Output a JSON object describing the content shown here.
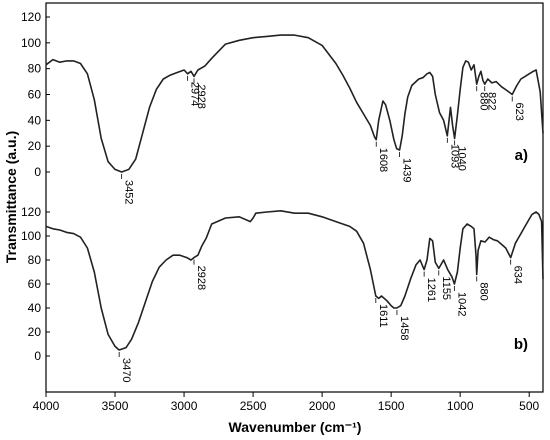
{
  "chart_data": {
    "type": "line",
    "title": "",
    "xlabel": "Wavenumber (cm⁻¹)",
    "ylabel": "Transmittance (a.u.)",
    "xlim": [
      4000,
      400
    ],
    "xticks": [
      4000,
      3500,
      3000,
      2500,
      2000,
      1500,
      1000,
      500
    ],
    "grid": false,
    "series": [
      {
        "panel_label": "a)",
        "yticks": [
          0,
          20,
          40,
          60,
          80,
          100,
          120
        ],
        "x": [
          4000,
          3950,
          3900,
          3850,
          3800,
          3750,
          3700,
          3650,
          3600,
          3550,
          3500,
          3452,
          3400,
          3350,
          3300,
          3250,
          3200,
          3150,
          3100,
          3050,
          3000,
          2974,
          2950,
          2928,
          2900,
          2850,
          2800,
          2700,
          2600,
          2500,
          2400,
          2300,
          2200,
          2100,
          2000,
          1900,
          1850,
          1800,
          1750,
          1700,
          1650,
          1620,
          1608,
          1590,
          1560,
          1540,
          1510,
          1480,
          1460,
          1439,
          1420,
          1400,
          1380,
          1350,
          1300,
          1270,
          1240,
          1220,
          1200,
          1180,
          1150,
          1120,
          1093,
          1070,
          1055,
          1040,
          1020,
          1000,
          980,
          960,
          940,
          920,
          900,
          880,
          865,
          850,
          835,
          822,
          800,
          770,
          740,
          700,
          660,
          623,
          590,
          560,
          530,
          500,
          470,
          450,
          420,
          400
        ],
        "y": [
          83,
          87,
          85,
          86,
          86,
          84,
          76,
          56,
          26,
          8,
          2,
          0,
          2,
          10,
          30,
          50,
          64,
          72,
          75,
          77,
          79,
          76,
          78,
          74,
          79,
          82,
          88,
          99,
          102,
          104,
          105,
          106,
          106,
          104,
          98,
          84,
          75,
          65,
          54,
          45,
          36,
          27,
          25,
          40,
          55,
          52,
          40,
          25,
          18,
          17,
          28,
          45,
          58,
          67,
          72,
          73,
          76,
          77,
          74,
          60,
          46,
          40,
          28,
          50,
          36,
          26,
          44,
          64,
          81,
          86,
          85,
          79,
          83,
          68,
          74,
          78,
          71,
          68,
          72,
          69,
          70,
          66,
          63,
          60,
          67,
          72,
          74,
          76,
          78,
          79,
          62,
          30
        ],
        "peak_labels": [
          "3452",
          "2974",
          "2928",
          "1608",
          "1439",
          "1093",
          "1040",
          "880",
          "822",
          "623"
        ]
      },
      {
        "panel_label": "b)",
        "yticks": [
          0,
          20,
          40,
          60,
          80,
          100,
          120
        ],
        "x": [
          4000,
          3950,
          3900,
          3850,
          3800,
          3750,
          3700,
          3650,
          3600,
          3550,
          3500,
          3470,
          3420,
          3380,
          3330,
          3280,
          3230,
          3180,
          3130,
          3080,
          3030,
          2980,
          2950,
          2928,
          2900,
          2870,
          2840,
          2800,
          2700,
          2600,
          2520,
          2500,
          2480,
          2400,
          2300,
          2200,
          2100,
          2000,
          1900,
          1800,
          1750,
          1700,
          1650,
          1611,
          1590,
          1570,
          1530,
          1500,
          1480,
          1458,
          1430,
          1400,
          1360,
          1320,
          1290,
          1261,
          1240,
          1220,
          1200,
          1180,
          1155,
          1120,
          1090,
          1060,
          1042,
          1020,
          1000,
          980,
          950,
          920,
          900,
          885,
          880,
          870,
          850,
          820,
          790,
          760,
          730,
          700,
          670,
          634,
          600,
          560,
          520,
          480,
          450,
          430,
          410,
          400
        ],
        "y": [
          108,
          106,
          105,
          103,
          102,
          99,
          90,
          70,
          40,
          18,
          8,
          5,
          7,
          14,
          28,
          45,
          62,
          74,
          80,
          84,
          84,
          82,
          80,
          82,
          84,
          92,
          98,
          110,
          115,
          116,
          112,
          115,
          119,
          120,
          121,
          119,
          119,
          116,
          112,
          108,
          104,
          94,
          72,
          50,
          48,
          50,
          46,
          42,
          40,
          40,
          42,
          50,
          64,
          76,
          80,
          72,
          80,
          98,
          96,
          78,
          73,
          80,
          72,
          66,
          60,
          70,
          90,
          106,
          110,
          108,
          106,
          84,
          68,
          88,
          96,
          95,
          99,
          97,
          96,
          93,
          90,
          82,
          94,
          102,
          110,
          118,
          120,
          118,
          112,
          64
        ],
        "peak_labels": [
          "3470",
          "2928",
          "1611",
          "1458",
          "1261",
          "1155",
          "1042",
          "880",
          "634"
        ]
      }
    ]
  }
}
